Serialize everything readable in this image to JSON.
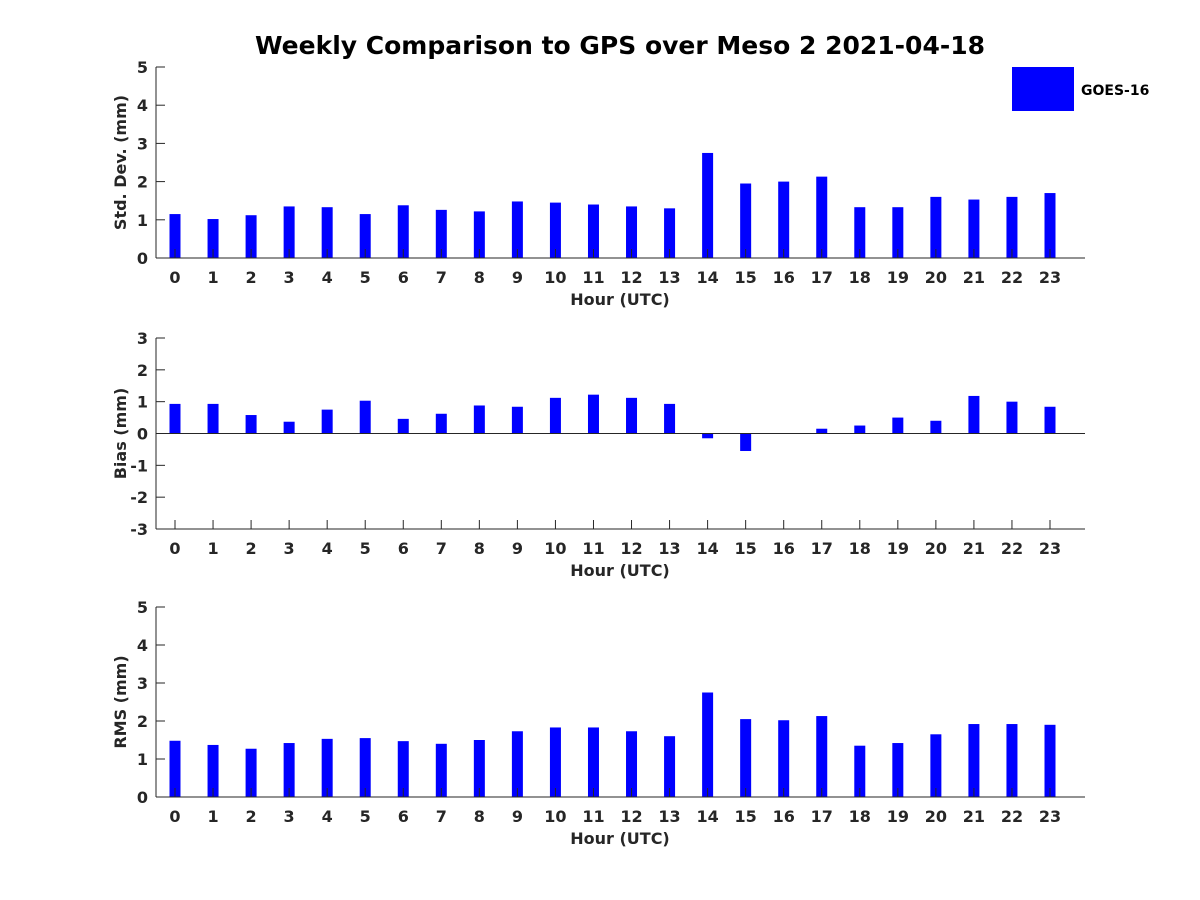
{
  "title": "Weekly Comparison to GPS over Meso 2 2021-04-18",
  "legend": {
    "label": "GOES-16",
    "color": "#0000ff"
  },
  "bar_color": "#0000ff",
  "chart_data": [
    {
      "type": "bar",
      "title": "Weekly Comparison to GPS over Meso 2 2021-04-18",
      "xlabel": "Hour (UTC)",
      "ylabel": "Std. Dev. (mm)",
      "ylim": [
        0,
        5
      ],
      "yticks": [
        0,
        1,
        2,
        3,
        4,
        5
      ],
      "categories": [
        "0",
        "1",
        "2",
        "3",
        "4",
        "5",
        "6",
        "7",
        "8",
        "9",
        "10",
        "11",
        "12",
        "13",
        "14",
        "15",
        "16",
        "17",
        "18",
        "19",
        "20",
        "21",
        "22",
        "23"
      ],
      "series": [
        {
          "name": "GOES-16",
          "values": [
            1.15,
            1.02,
            1.12,
            1.35,
            1.33,
            1.15,
            1.38,
            1.26,
            1.22,
            1.48,
            1.45,
            1.4,
            1.35,
            1.3,
            2.75,
            1.95,
            2.0,
            2.13,
            1.33,
            1.33,
            1.6,
            1.53,
            1.6,
            1.7
          ]
        }
      ]
    },
    {
      "type": "bar",
      "title": "",
      "xlabel": "Hour (UTC)",
      "ylabel": "Bias (mm)",
      "ylim": [
        -3,
        3
      ],
      "yticks": [
        -3,
        -2,
        -1,
        0,
        1,
        2,
        3
      ],
      "categories": [
        "0",
        "1",
        "2",
        "3",
        "4",
        "5",
        "6",
        "7",
        "8",
        "9",
        "10",
        "11",
        "12",
        "13",
        "14",
        "15",
        "16",
        "17",
        "18",
        "19",
        "20",
        "21",
        "22",
        "23"
      ],
      "series": [
        {
          "name": "GOES-16",
          "values": [
            0.93,
            0.93,
            0.58,
            0.37,
            0.75,
            1.03,
            0.46,
            0.62,
            0.88,
            0.84,
            1.12,
            1.22,
            1.12,
            0.93,
            -0.15,
            -0.55,
            0.0,
            0.15,
            0.25,
            0.5,
            0.4,
            1.18,
            1.0,
            0.84
          ]
        }
      ]
    },
    {
      "type": "bar",
      "title": "",
      "xlabel": "Hour (UTC)",
      "ylabel": "RMS (mm)",
      "ylim": [
        0,
        5
      ],
      "yticks": [
        0,
        1,
        2,
        3,
        4,
        5
      ],
      "categories": [
        "0",
        "1",
        "2",
        "3",
        "4",
        "5",
        "6",
        "7",
        "8",
        "9",
        "10",
        "11",
        "12",
        "13",
        "14",
        "15",
        "16",
        "17",
        "18",
        "19",
        "20",
        "21",
        "22",
        "23"
      ],
      "series": [
        {
          "name": "GOES-16",
          "values": [
            1.48,
            1.37,
            1.27,
            1.42,
            1.53,
            1.55,
            1.47,
            1.4,
            1.5,
            1.73,
            1.83,
            1.83,
            1.73,
            1.6,
            2.75,
            2.05,
            2.02,
            2.13,
            1.35,
            1.42,
            1.65,
            1.92,
            1.92,
            1.9
          ]
        }
      ]
    }
  ]
}
